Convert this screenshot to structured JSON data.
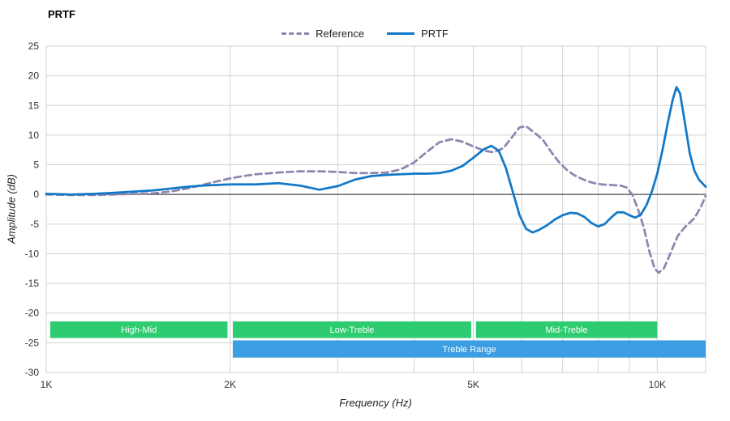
{
  "chart_data": {
    "type": "line",
    "title": "PRTF",
    "xlabel": "Frequency (Hz)",
    "ylabel": "Amplitude (dB)",
    "x_scale": "log",
    "xlim": [
      1000,
      12000
    ],
    "ylim": [
      -30,
      25
    ],
    "grid": true,
    "grid_color": "#d2d2d2",
    "zero_line_color": "#222222",
    "legend_position": "top-center",
    "y_ticks": [
      25,
      20,
      15,
      10,
      5,
      0,
      -5,
      -10,
      -15,
      -20,
      -25,
      -30
    ],
    "x_ticks": [
      {
        "v": 1000,
        "label": "1K"
      },
      {
        "v": 2000,
        "label": "2K"
      },
      {
        "v": 5000,
        "label": "5K"
      },
      {
        "v": 10000,
        "label": "10K"
      }
    ],
    "x_gridlines": [
      1000,
      2000,
      3000,
      4000,
      5000,
      6000,
      7000,
      8000,
      9000,
      10000
    ],
    "series": [
      {
        "name": "Reference",
        "color": "#8d87ae",
        "dashed": true,
        "points": [
          [
            1000,
            0.0
          ],
          [
            1100,
            -0.1
          ],
          [
            1200,
            -0.1
          ],
          [
            1300,
            0.0
          ],
          [
            1400,
            0.1
          ],
          [
            1500,
            0.2
          ],
          [
            1600,
            0.5
          ],
          [
            1700,
            1.0
          ],
          [
            1800,
            1.6
          ],
          [
            1900,
            2.2
          ],
          [
            2000,
            2.7
          ],
          [
            2100,
            3.1
          ],
          [
            2200,
            3.4
          ],
          [
            2400,
            3.7
          ],
          [
            2600,
            3.9
          ],
          [
            2800,
            3.9
          ],
          [
            3000,
            3.8
          ],
          [
            3200,
            3.6
          ],
          [
            3400,
            3.6
          ],
          [
            3600,
            3.7
          ],
          [
            3800,
            4.2
          ],
          [
            4000,
            5.4
          ],
          [
            4200,
            7.2
          ],
          [
            4400,
            8.8
          ],
          [
            4600,
            9.3
          ],
          [
            4800,
            8.9
          ],
          [
            5000,
            8.1
          ],
          [
            5200,
            7.4
          ],
          [
            5400,
            7.1
          ],
          [
            5600,
            7.8
          ],
          [
            5800,
            9.8
          ],
          [
            5950,
            11.3
          ],
          [
            6100,
            11.5
          ],
          [
            6300,
            10.4
          ],
          [
            6500,
            9.2
          ],
          [
            6700,
            7.2
          ],
          [
            6900,
            5.5
          ],
          [
            7100,
            4.2
          ],
          [
            7300,
            3.3
          ],
          [
            7500,
            2.7
          ],
          [
            7700,
            2.2
          ],
          [
            7900,
            1.9
          ],
          [
            8100,
            1.7
          ],
          [
            8400,
            1.6
          ],
          [
            8700,
            1.5
          ],
          [
            8900,
            1.2
          ],
          [
            9100,
            0.0
          ],
          [
            9300,
            -2.5
          ],
          [
            9500,
            -5.5
          ],
          [
            9700,
            -9.5
          ],
          [
            9900,
            -12.5
          ],
          [
            10050,
            -13.2
          ],
          [
            10250,
            -12.5
          ],
          [
            10500,
            -10.0
          ],
          [
            10800,
            -7.0
          ],
          [
            11100,
            -5.5
          ],
          [
            11500,
            -4.0
          ],
          [
            11800,
            -2.0
          ],
          [
            12000,
            -0.2
          ]
        ]
      },
      {
        "name": "PRTF",
        "color": "#1278c8",
        "dashed": false,
        "points": [
          [
            1000,
            0.1
          ],
          [
            1100,
            0.0
          ],
          [
            1200,
            0.1
          ],
          [
            1300,
            0.3
          ],
          [
            1400,
            0.5
          ],
          [
            1500,
            0.7
          ],
          [
            1600,
            1.0
          ],
          [
            1700,
            1.3
          ],
          [
            1800,
            1.5
          ],
          [
            1900,
            1.6
          ],
          [
            2000,
            1.7
          ],
          [
            2200,
            1.7
          ],
          [
            2400,
            1.9
          ],
          [
            2600,
            1.5
          ],
          [
            2800,
            0.8
          ],
          [
            3000,
            1.4
          ],
          [
            3200,
            2.5
          ],
          [
            3400,
            3.1
          ],
          [
            3600,
            3.3
          ],
          [
            3800,
            3.4
          ],
          [
            4000,
            3.5
          ],
          [
            4200,
            3.5
          ],
          [
            4400,
            3.6
          ],
          [
            4600,
            4.0
          ],
          [
            4800,
            4.8
          ],
          [
            5000,
            6.2
          ],
          [
            5200,
            7.6
          ],
          [
            5350,
            8.2
          ],
          [
            5500,
            7.4
          ],
          [
            5650,
            4.5
          ],
          [
            5800,
            0.5
          ],
          [
            5950,
            -3.5
          ],
          [
            6100,
            -5.8
          ],
          [
            6250,
            -6.4
          ],
          [
            6400,
            -6.0
          ],
          [
            6600,
            -5.2
          ],
          [
            6800,
            -4.2
          ],
          [
            7000,
            -3.5
          ],
          [
            7200,
            -3.1
          ],
          [
            7400,
            -3.2
          ],
          [
            7600,
            -3.8
          ],
          [
            7800,
            -4.8
          ],
          [
            8000,
            -5.4
          ],
          [
            8200,
            -5.0
          ],
          [
            8400,
            -3.9
          ],
          [
            8600,
            -3.0
          ],
          [
            8800,
            -3.0
          ],
          [
            9000,
            -3.5
          ],
          [
            9200,
            -3.9
          ],
          [
            9400,
            -3.4
          ],
          [
            9600,
            -1.8
          ],
          [
            9800,
            0.5
          ],
          [
            10000,
            3.5
          ],
          [
            10200,
            7.5
          ],
          [
            10400,
            12.0
          ],
          [
            10600,
            16.0
          ],
          [
            10750,
            18.1
          ],
          [
            10900,
            17.0
          ],
          [
            11100,
            12.0
          ],
          [
            11300,
            7.0
          ],
          [
            11500,
            4.0
          ],
          [
            11700,
            2.5
          ],
          [
            12000,
            1.3
          ]
        ]
      }
    ],
    "bands": [
      {
        "label": "High-Mid",
        "x1": 1015,
        "x2": 1980,
        "y_top": -21.4,
        "y_bottom": -24.2,
        "color": "#2ecc71",
        "text_color": "#ffffff"
      },
      {
        "label": "Low-Treble",
        "x1": 2020,
        "x2": 4960,
        "y_top": -21.4,
        "y_bottom": -24.2,
        "color": "#2ecc71",
        "text_color": "#ffffff"
      },
      {
        "label": "Mid-Treble",
        "x1": 5050,
        "x2": 10000,
        "y_top": -21.4,
        "y_bottom": -24.2,
        "color": "#2ecc71",
        "text_color": "#ffffff"
      },
      {
        "label": "Treble Range",
        "x1": 2020,
        "x2": 12000,
        "y_top": -24.6,
        "y_bottom": -27.5,
        "color": "#3b9de2",
        "text_color": "#ffffff"
      }
    ]
  }
}
